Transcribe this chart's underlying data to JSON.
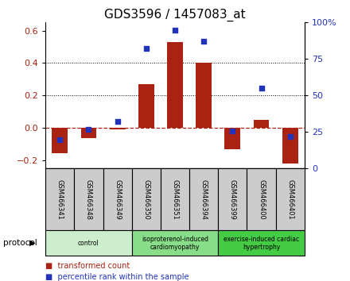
{
  "title": "GDS3596 / 1457083_at",
  "samples": [
    "GSM466341",
    "GSM466348",
    "GSM466349",
    "GSM466350",
    "GSM466351",
    "GSM466394",
    "GSM466399",
    "GSM466400",
    "GSM466401"
  ],
  "transformed_count": [
    -0.155,
    -0.06,
    -0.01,
    0.27,
    0.53,
    0.4,
    -0.13,
    0.05,
    -0.22
  ],
  "percentile_rank": [
    20,
    27,
    32,
    82,
    95,
    87,
    26,
    55,
    22
  ],
  "ylim_left": [
    -0.25,
    0.65
  ],
  "ylim_right": [
    0,
    100
  ],
  "yticks_left": [
    -0.2,
    0.0,
    0.2,
    0.4,
    0.6
  ],
  "yticks_right": [
    0,
    25,
    50,
    75,
    100
  ],
  "bar_color": "#aa2211",
  "dot_color": "#2233bb",
  "plot_bg": "#ffffff",
  "sample_box_color": "#cccccc",
  "groups": [
    {
      "label": "control",
      "start": 0,
      "end": 3,
      "color": "#cceecc"
    },
    {
      "label": "isoproterenol-induced\ncardiomyopathy",
      "start": 3,
      "end": 6,
      "color": "#88dd88"
    },
    {
      "label": "exercise-induced cardiac\nhypertrophy",
      "start": 6,
      "end": 9,
      "color": "#44cc44"
    }
  ],
  "protocol_label": "protocol",
  "legend_bar_label": "transformed count",
  "legend_dot_label": "percentile rank within the sample",
  "title_fontsize": 11,
  "tick_fontsize": 8,
  "bar_width": 0.55
}
